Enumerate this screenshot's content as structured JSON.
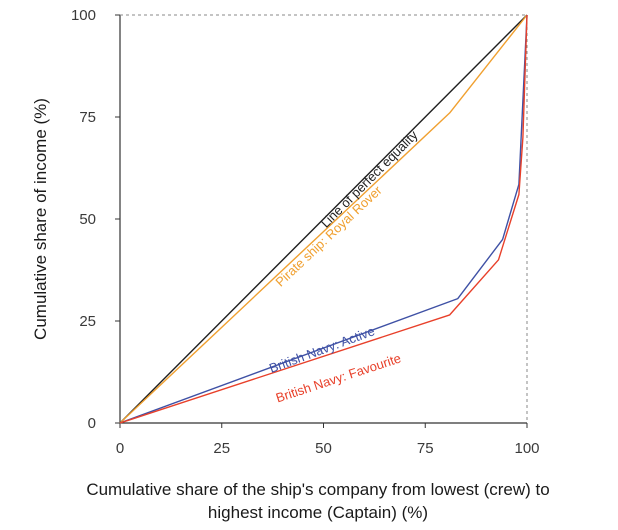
{
  "chart_data": {
    "type": "line",
    "title": "",
    "xlabel_line1": "Cumulative share of the ship's company from lowest (crew) to",
    "xlabel_line2": "highest income (Captain) (%)",
    "ylabel": "Cumulative share of income (%)",
    "xlim": [
      0,
      100
    ],
    "ylim": [
      0,
      100
    ],
    "xticks": [
      "0",
      "25",
      "50",
      "75",
      "100"
    ],
    "yticks": [
      "0",
      "25",
      "50",
      "75",
      "100"
    ],
    "grid": false,
    "series": [
      {
        "name": "Line of perfect equality",
        "color": "#1f1f1f",
        "x": [
          0,
          100
        ],
        "y": [
          0,
          100
        ]
      },
      {
        "name": "Pirate ship: Royal Rover",
        "color": "#f0a030",
        "x": [
          0,
          81,
          100
        ],
        "y": [
          0,
          76,
          100
        ]
      },
      {
        "name": "British Navy: Active",
        "color": "#3f51a5",
        "x": [
          0,
          83,
          94,
          98,
          100
        ],
        "y": [
          0,
          30.5,
          45,
          58.5,
          100
        ]
      },
      {
        "name": "British Navy: Favourite",
        "color": "#e8402a",
        "x": [
          0,
          81,
          93,
          98,
          99,
          100
        ],
        "y": [
          0,
          26.5,
          40,
          56,
          70,
          100
        ]
      }
    ]
  }
}
